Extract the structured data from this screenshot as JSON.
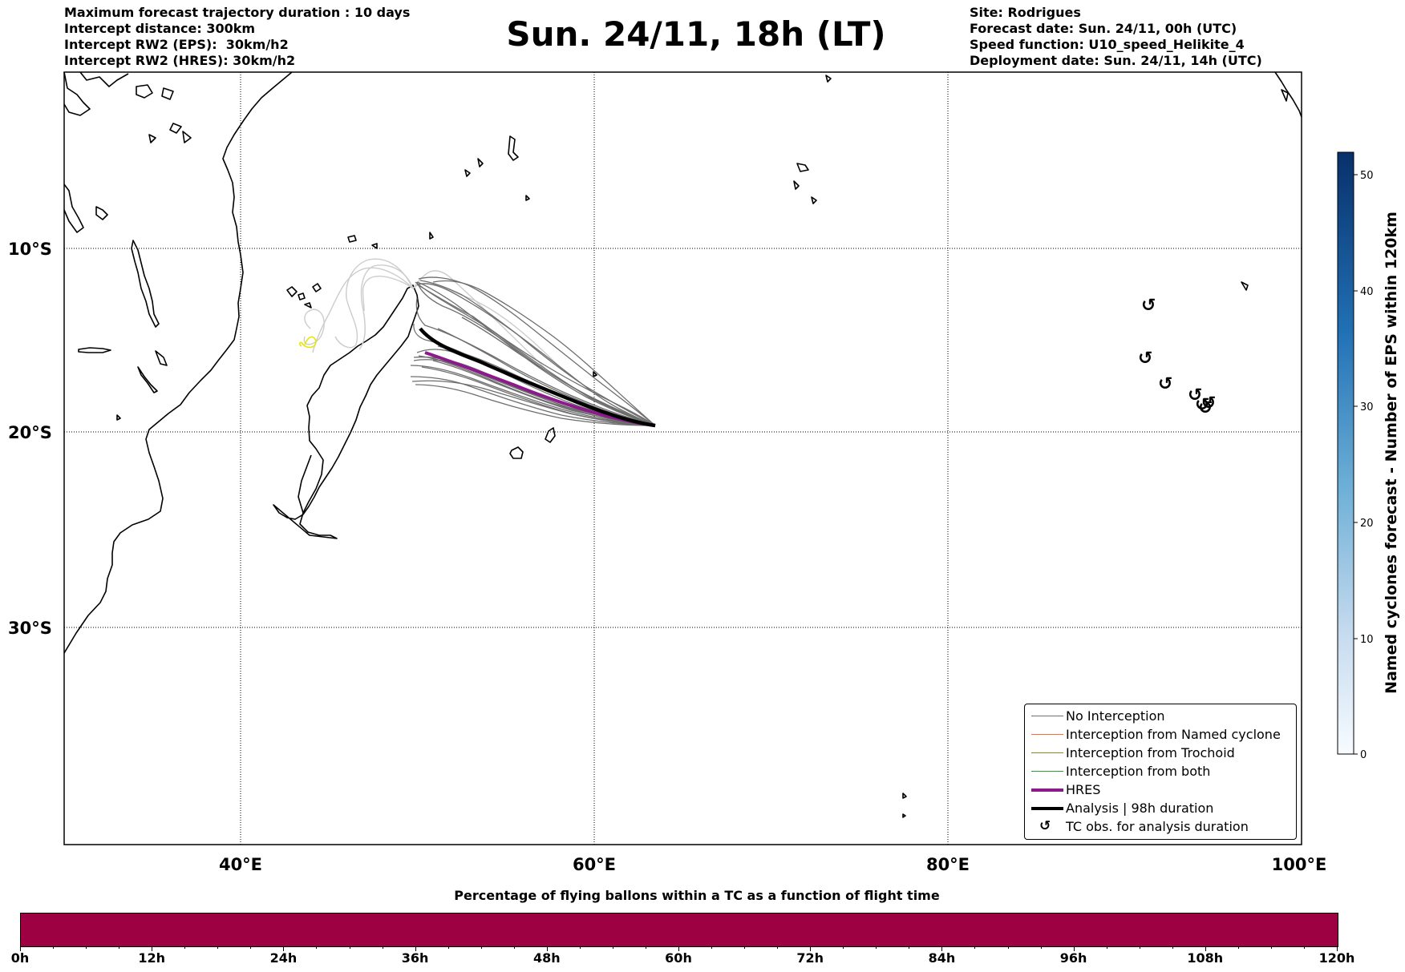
{
  "header_left": [
    "Maximum forecast trajectory duration : 10 days",
    "Intercept distance: 300km",
    "Intercept RW2 (EPS):  30km/h2",
    "Intercept RW2 (HRES): 30km/h2"
  ],
  "title": "Sun. 24/11, 18h (LT)",
  "header_right": [
    "Site: Rodrigues",
    "Forecast date: Sun. 24/11, 00h (UTC)",
    "Speed function: U10_speed_Helikite_4",
    "Deployment date: Sun. 24/11, 14h (UTC)"
  ],
  "map": {
    "lat_labels": [
      "10°S",
      "20°S",
      "30°S"
    ],
    "lon_labels": [
      "40°E",
      "60°E",
      "80°E",
      "100°E"
    ]
  },
  "legend": {
    "items": [
      {
        "label": "No Interception",
        "color": "#707070",
        "width": 1.5
      },
      {
        "label": "Interception from Named cyclone",
        "color": "#ff6a33",
        "width": 1.5
      },
      {
        "label": "Interception from Trochoid",
        "color": "#8a8a1a",
        "width": 1.5
      },
      {
        "label": "Interception from both",
        "color": "#2ca02c",
        "width": 1.5
      },
      {
        "label": "HRES",
        "color": "#8b1a8b",
        "width": 4
      },
      {
        "label": "Analysis | 98h duration",
        "color": "#000000",
        "width": 4
      },
      {
        "label": "TC obs. for analysis duration",
        "marker": "cyclone-icon"
      }
    ]
  },
  "colorbar": {
    "title": "Named cyclones forecast - Number of EPS within 120km",
    "ticks": [
      "0",
      "10",
      "20",
      "30",
      "40",
      "50"
    ],
    "color_low": "#f7fbff",
    "color_high": "#08306b"
  },
  "bottom_bar": {
    "title": "Percentage of flying ballons within a TC as a function of flight time",
    "color": "#9e0142",
    "ticks": [
      "0h",
      "12h",
      "24h",
      "36h",
      "48h",
      "60h",
      "72h",
      "84h",
      "96h",
      "108h",
      "120h"
    ]
  }
}
